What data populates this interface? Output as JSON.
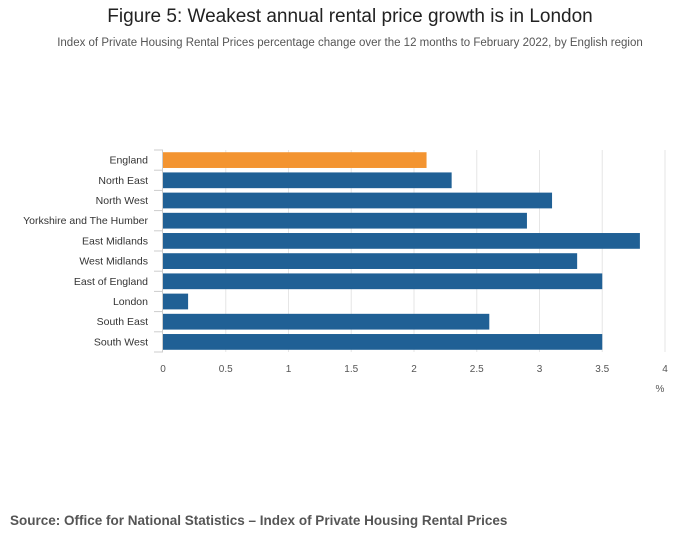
{
  "chart_data": {
    "type": "bar",
    "orientation": "horizontal",
    "title": "Figure 5: Weakest annual rental price growth is in London",
    "subtitle": "Index of Private Housing Rental Prices percentage change over the 12 months to February 2022, by English region",
    "categories": [
      "England",
      "North East",
      "North West",
      "Yorkshire and The Humber",
      "East Midlands",
      "West Midlands",
      "East of England",
      "London",
      "South East",
      "South West"
    ],
    "values": [
      2.1,
      2.3,
      3.1,
      2.9,
      3.8,
      3.3,
      3.5,
      0.2,
      2.6,
      3.5
    ],
    "highlight_category": "England",
    "xlabel": "%",
    "ylabel": "",
    "xlim": [
      0,
      4
    ],
    "x_ticks": [
      "0",
      "0.5",
      "1",
      "1.5",
      "2",
      "2.5",
      "3",
      "3.5",
      "4"
    ],
    "grid": true,
    "colors": {
      "highlight": "#f39431",
      "default": "#206095",
      "grid": "#e6e6e6",
      "axis": "#cccccc"
    }
  },
  "footer": {
    "source": "Source: Office for National Statistics – Index of Private Housing Rental Prices"
  }
}
